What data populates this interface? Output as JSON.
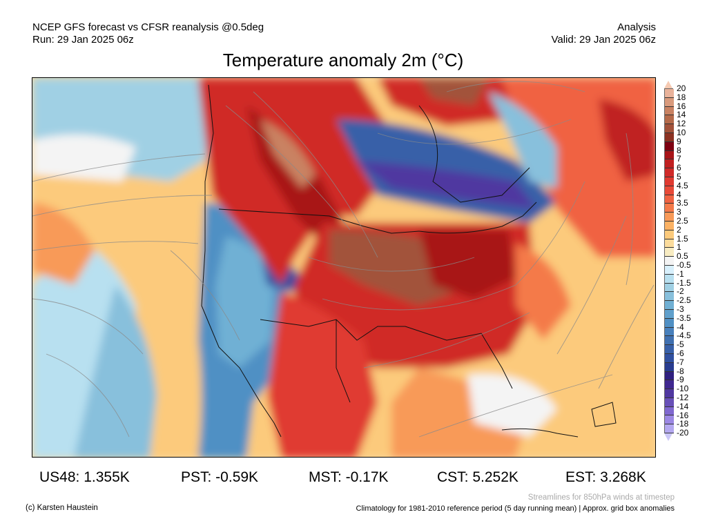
{
  "header": {
    "line1_left": "NCEP GFS forecast vs CFSR reanalysis @0.5deg",
    "line2_left": "Run: 29 Jan 2025 06z",
    "line1_right": "Analysis",
    "line2_right": "Valid: 29 Jan 2025 06z"
  },
  "title": "Temperature anomaly 2m (°C)",
  "colorbar": {
    "labels": [
      "20",
      "18",
      "16",
      "14",
      "12",
      "10",
      "9",
      "8",
      "7",
      "6",
      "5",
      "4.5",
      "4",
      "3.5",
      "3",
      "2.5",
      "2",
      "1.5",
      "1",
      "0.5",
      "-0.5",
      "-1",
      "-1.5",
      "-2",
      "-2.5",
      "-3",
      "-3.5",
      "-4",
      "-4.5",
      "-5",
      "-6",
      "-7",
      "-8",
      "-9",
      "-10",
      "-12",
      "-14",
      "-16",
      "-18",
      "-20"
    ],
    "over_color": "#f6cab2",
    "under_color": "#ccc8f8",
    "colors": [
      "#e9b29a",
      "#d99a7c",
      "#c98262",
      "#b56a4a",
      "#a2523a",
      "#8c3222",
      "#7e0010",
      "#a81418",
      "#c02020",
      "#d02a28",
      "#e03a30",
      "#e84a38",
      "#f06242",
      "#f47a4a",
      "#f89a58",
      "#fcb264",
      "#fcca7c",
      "#fcdc9c",
      "#f8ecc2",
      "#f4f4f4",
      "#d8f0fc",
      "#b8e0f0",
      "#a0d0e4",
      "#88c0dc",
      "#70b0d4",
      "#60a0cc",
      "#5090c4",
      "#4880bc",
      "#4070b0",
      "#3860a8",
      "#3050a0",
      "#283c90",
      "#302080",
      "#402890",
      "#5038a0",
      "#6850b8",
      "#8068d0",
      "#9c88e4",
      "#b4a8f0"
    ]
  },
  "stats": [
    {
      "label": "US48: 1.355K"
    },
    {
      "label": "PST: -0.59K"
    },
    {
      "label": "MST: -0.17K"
    },
    {
      "label": "CST: 5.252K"
    },
    {
      "label": "EST: 3.268K"
    }
  ],
  "footer": {
    "copyright": "(c) Karsten Haustein",
    "streamlines_note": "Streamlines for 850hPa winds at timestep",
    "climatology_note": "Climatology for 1981-2010 reference period (5 day running mean) | Approx. grid box anomalies"
  }
}
